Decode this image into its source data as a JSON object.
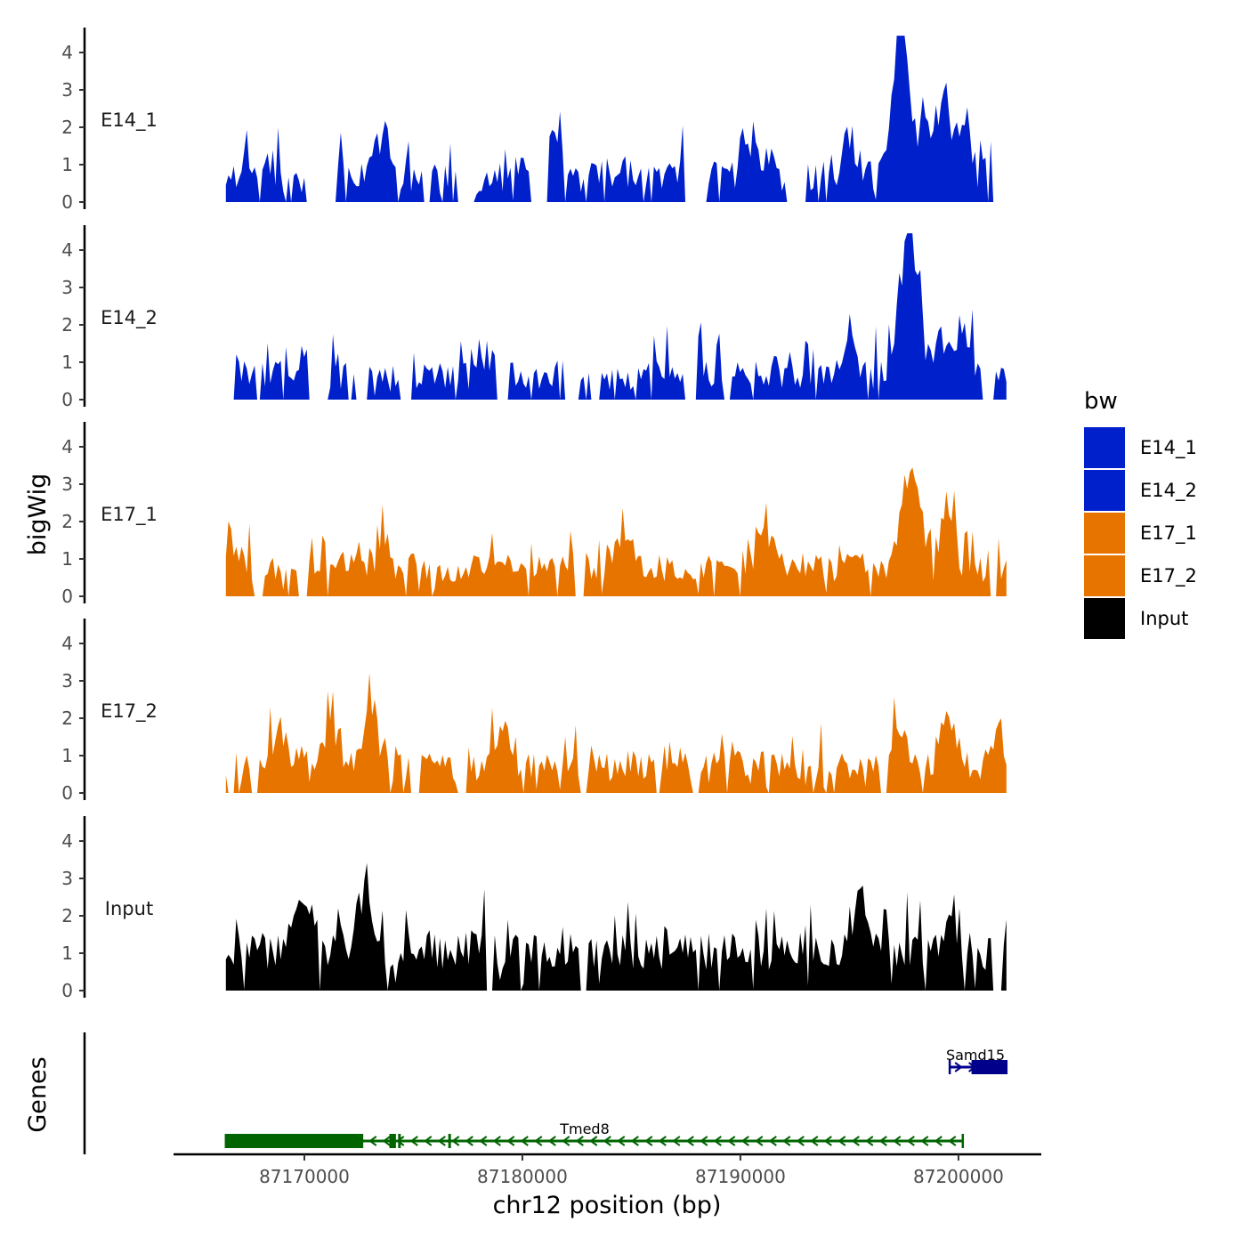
{
  "chart_data": {
    "type": "area",
    "chromosome": "chr12",
    "xlabel": "chr12 position (bp)",
    "ylabel": "bigWig",
    "genes_label": "Genes",
    "xlim": [
      87164000,
      87203800
    ],
    "x_ticks": [
      87170000,
      87180000,
      87190000,
      87200000
    ],
    "x_tick_labels": [
      "87170000",
      "87180000",
      "87190000",
      "87200000"
    ],
    "signal_range": [
      87166400,
      87202200
    ],
    "ylim": [
      0,
      4.6
    ],
    "y_ticks": [
      0,
      1,
      2,
      3,
      4
    ],
    "y_tick_labels": [
      "0",
      "1",
      "2",
      "3",
      "4"
    ],
    "legend": {
      "title": "bw",
      "entries": [
        {
          "label": "E14_1",
          "color": "#0020cc"
        },
        {
          "label": "E14_2",
          "color": "#0020cc"
        },
        {
          "label": "E17_1",
          "color": "#e87400"
        },
        {
          "label": "E17_2",
          "color": "#e87400"
        },
        {
          "label": "Input",
          "color": "#000000"
        }
      ]
    },
    "tracks": [
      {
        "name": "E14_1",
        "color": "#0020cc",
        "seed": 11,
        "base": 0.55,
        "noise": 0.9,
        "peaks": [
          [
            0.025,
            0.4
          ],
          [
            0.12,
            1.1
          ],
          [
            0.2,
            1.2
          ],
          [
            0.42,
            1.25
          ],
          [
            0.67,
            1.35
          ],
          [
            0.8,
            1.25
          ],
          [
            0.86,
            3.3
          ],
          [
            0.87,
            3.1
          ],
          [
            0.895,
            2.2
          ],
          [
            0.92,
            2.4
          ],
          [
            0.945,
            1.7
          ]
        ],
        "gaps": [
          [
            0.105,
            0.14
          ],
          [
            0.3,
            0.315
          ],
          [
            0.395,
            0.41
          ],
          [
            0.59,
            0.615
          ],
          [
            0.72,
            0.74
          ],
          [
            0.985,
            1.0
          ]
        ]
      },
      {
        "name": "E14_2",
        "color": "#0020cc",
        "seed": 29,
        "base": 0.5,
        "noise": 0.85,
        "peaks": [
          [
            0.1,
            1.1
          ],
          [
            0.33,
            0.9
          ],
          [
            0.6,
            1.0
          ],
          [
            0.8,
            1.3
          ],
          [
            0.865,
            2.4
          ],
          [
            0.875,
            2.7
          ],
          [
            0.885,
            2.5
          ],
          [
            0.92,
            1.3
          ],
          [
            0.945,
            1.6
          ]
        ],
        "gaps": [
          [
            0.0,
            0.008
          ],
          [
            0.11,
            0.125
          ],
          [
            0.17,
            0.18
          ],
          [
            0.225,
            0.235
          ],
          [
            0.35,
            0.36
          ],
          [
            0.435,
            0.45
          ],
          [
            0.47,
            0.475
          ],
          [
            0.59,
            0.6
          ],
          [
            0.64,
            0.645
          ],
          [
            0.97,
            0.98
          ]
        ]
      },
      {
        "name": "E17_1",
        "color": "#e87400",
        "seed": 47,
        "base": 0.65,
        "noise": 0.8,
        "peaks": [
          [
            0.0,
            1.1
          ],
          [
            0.2,
            0.8
          ],
          [
            0.51,
            1.5
          ],
          [
            0.69,
            1.5
          ],
          [
            0.87,
            2.3
          ],
          [
            0.885,
            2.4
          ],
          [
            0.925,
            2.0
          ]
        ],
        "gaps": [
          [
            0.04,
            0.045
          ],
          [
            0.095,
            0.1
          ],
          [
            0.45,
            0.455
          ],
          [
            0.98,
            0.985
          ]
        ]
      },
      {
        "name": "E17_2",
        "color": "#e87400",
        "seed": 83,
        "base": 0.55,
        "noise": 0.9,
        "peaks": [
          [
            0.07,
            1.6
          ],
          [
            0.135,
            1.9
          ],
          [
            0.185,
            2.5
          ],
          [
            0.35,
            1.6
          ],
          [
            0.86,
            2.0
          ],
          [
            0.925,
            2.2
          ],
          [
            0.99,
            1.4
          ]
        ],
        "gaps": [
          [
            0.005,
            0.01
          ],
          [
            0.035,
            0.04
          ],
          [
            0.24,
            0.245
          ],
          [
            0.3,
            0.305
          ],
          [
            0.455,
            0.46
          ],
          [
            0.6,
            0.605
          ],
          [
            0.84,
            0.845
          ]
        ]
      },
      {
        "name": "Input",
        "color": "#000000",
        "seed": 131,
        "base": 0.9,
        "noise": 1.0,
        "peaks": [
          [
            0.1,
            2.3
          ],
          [
            0.175,
            2.3
          ],
          [
            0.33,
            1.5
          ],
          [
            0.81,
            2.0
          ],
          [
            0.93,
            1.3
          ]
        ],
        "gaps": [
          [
            0.335,
            0.34
          ],
          [
            0.455,
            0.46
          ],
          [
            0.985,
            0.99
          ]
        ]
      }
    ],
    "genes": [
      {
        "name": "Tmed8",
        "color": "#006400",
        "start": 87166400,
        "end": 87200200,
        "strand": "-",
        "exons": [
          [
            87166400,
            87172700
          ],
          [
            87173900,
            87174200
          ],
          [
            87174300,
            87174400
          ],
          [
            87176600,
            87176700
          ]
        ]
      },
      {
        "name": "Samd15",
        "color": "#00008b",
        "start": 87199600,
        "end": 87202200,
        "strand": "+",
        "exons": [
          [
            87200600,
            87202200
          ]
        ]
      }
    ]
  }
}
